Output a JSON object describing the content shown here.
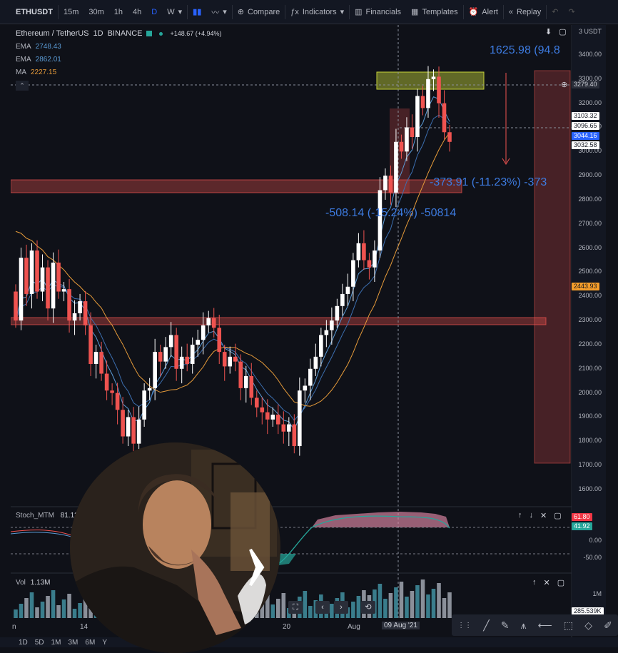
{
  "toolbar": {
    "symbol": "ETHUSDT",
    "intervals": [
      "15m",
      "30m",
      "1h",
      "4h",
      "D",
      "W"
    ],
    "active_interval": "D",
    "compare": "Compare",
    "indicators": "Indicators",
    "financials": "Financials",
    "templates": "Templates",
    "alert": "Alert",
    "replay": "Replay"
  },
  "legend": {
    "title": "Ethereum / TetherUS",
    "interval": "1D",
    "exchange": "BINANCE",
    "change": "+148.67 (+4.94%)",
    "indicators": [
      {
        "name": "EMA",
        "value": "2748.43",
        "color": "#5b9bd5"
      },
      {
        "name": "EMA",
        "value": "2862.01",
        "color": "#5b9bd5"
      },
      {
        "name": "MA",
        "value": "2227.15",
        "color": "#e69b3a"
      }
    ]
  },
  "price_axis": {
    "currency": "3 USDT",
    "ticks": [
      "3400.00",
      "3300.00",
      "3200.00",
      "3100.00",
      "3000.00",
      "2900.00",
      "2800.00",
      "2700.00",
      "2600.00",
      "2500.00",
      "2400.00",
      "2300.00",
      "2200.00",
      "2100.00",
      "2000.00",
      "1900.00",
      "1800.00",
      "1700.00",
      "1600.00"
    ],
    "crosshair_price": "3279.40",
    "tags": [
      {
        "label": "3103.32",
        "bg": "#ffffff",
        "fg": "#131722"
      },
      {
        "label": "3096.65",
        "bg": "#ffffff",
        "fg": "#131722"
      },
      {
        "label": "3044.16",
        "bg": "#2962ff",
        "fg": "#ffffff"
      },
      {
        "label": "3032.58",
        "bg": "#ffffff",
        "fg": "#131722"
      },
      {
        "label": "2443.93",
        "bg": "#f59d2a",
        "fg": "#131722"
      }
    ]
  },
  "annotations": {
    "range_top": "1625.98 (94.8",
    "range_mid": "-373.91 (-11.23%) -373",
    "range_low": "-508.14 (-15.24%) -50814"
  },
  "stoch": {
    "name": "Stoch_MTM",
    "value": "81.12",
    "axis": [
      "0.00",
      "-50.00"
    ],
    "tags": [
      {
        "label": "61.80",
        "bg": "#f23645",
        "fg": "#ffffff"
      },
      {
        "label": "41.92",
        "bg": "#26a69a",
        "fg": "#ffffff"
      }
    ]
  },
  "volume": {
    "label": "Vol",
    "value": "1.13M",
    "axis_m": "1M",
    "axis_k": "285.539K"
  },
  "time_axis": {
    "labels": [
      "n",
      "14",
      "20",
      "Aug",
      "09 Aug '21"
    ]
  },
  "bottom_bar": {
    "ranges": [
      "1D",
      "5D",
      "1M",
      "3M",
      "6M",
      "Y"
    ]
  },
  "colors": {
    "up": "#ffffff",
    "down": "#ef5350",
    "zone": "#ef5350",
    "highlight": "#c6d43a",
    "accent": "#2962ff"
  }
}
